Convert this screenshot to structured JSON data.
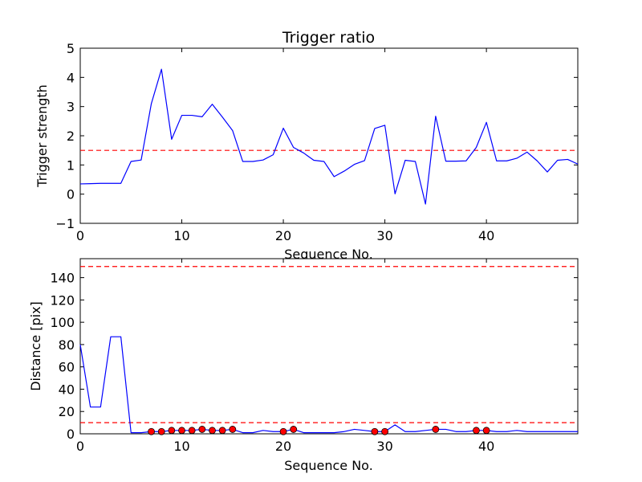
{
  "chart_data": [
    {
      "type": "line",
      "title": "Trigger ratio",
      "xlabel": "Sequence No.",
      "ylabel": "Trigger strength",
      "xlim": [
        0,
        49
      ],
      "ylim": [
        -1,
        5
      ],
      "xticks": [
        "0",
        "10",
        "20",
        "30",
        "40"
      ],
      "yticks": [
        "−1",
        "0",
        "1",
        "2",
        "3",
        "4",
        "5"
      ],
      "grid": false,
      "threshold": 1.5,
      "line_color": "#0000ff",
      "threshold_color": "#ff0000",
      "series": [
        {
          "x": [
            0,
            1,
            2,
            3,
            4,
            5,
            6,
            7,
            8,
            9,
            10,
            11,
            12,
            13,
            14,
            15,
            16,
            17,
            18,
            19,
            20,
            21,
            22,
            23,
            24,
            25,
            26,
            27,
            28,
            29,
            30,
            31,
            32,
            33,
            34,
            35,
            36,
            37,
            38,
            39,
            40,
            41,
            42,
            43,
            44,
            45,
            46,
            47,
            48,
            49
          ],
          "values": [
            0.35,
            0.36,
            0.37,
            0.37,
            0.37,
            1.12,
            1.17,
            3.1,
            4.28,
            1.88,
            2.7,
            2.7,
            2.65,
            3.08,
            2.64,
            2.18,
            1.12,
            1.12,
            1.17,
            1.35,
            2.26,
            1.6,
            1.41,
            1.16,
            1.12,
            0.6,
            0.79,
            1.02,
            1.15,
            2.25,
            2.36,
            0.01,
            1.16,
            1.12,
            -0.34,
            2.67,
            1.13,
            1.13,
            1.14,
            1.6,
            2.46,
            1.14,
            1.14,
            1.23,
            1.44,
            1.14,
            0.76,
            1.16,
            1.19,
            1.03
          ]
        }
      ]
    },
    {
      "type": "line",
      "title": "",
      "xlabel": "Sequence No.",
      "ylabel": "Distance [pix]",
      "xlim": [
        0,
        49
      ],
      "ylim": [
        0,
        157
      ],
      "xticks": [
        "0",
        "10",
        "20",
        "30",
        "40"
      ],
      "yticks": [
        "0",
        "20",
        "40",
        "60",
        "80",
        "100",
        "120",
        "140"
      ],
      "grid": false,
      "thresholds": [
        10,
        150
      ],
      "line_color": "#0000ff",
      "threshold_color": "#ff0000",
      "marker_color": "#ff0000",
      "series": [
        {
          "x": [
            0,
            1,
            2,
            3,
            4,
            5,
            6,
            7,
            8,
            9,
            10,
            11,
            12,
            13,
            14,
            15,
            16,
            17,
            18,
            19,
            20,
            21,
            22,
            23,
            24,
            25,
            26,
            27,
            28,
            29,
            30,
            31,
            32,
            33,
            34,
            35,
            36,
            37,
            38,
            39,
            40,
            41,
            42,
            43,
            44,
            45,
            46,
            47,
            48,
            49
          ],
          "values": [
            80,
            24,
            24,
            87,
            87,
            1,
            1,
            2,
            2,
            3,
            3,
            3,
            4,
            3,
            3,
            4,
            1,
            1,
            3,
            2,
            2,
            4,
            1,
            1,
            1,
            1,
            2,
            4,
            3,
            2,
            2,
            8,
            2,
            2,
            3,
            4,
            4,
            2,
            2,
            3,
            3,
            2,
            2,
            3,
            2,
            2,
            2,
            2,
            2,
            2
          ]
        }
      ],
      "highlighted_points": {
        "x": [
          7,
          8,
          9,
          10,
          11,
          12,
          13,
          14,
          15,
          20,
          21,
          29,
          30,
          35,
          39,
          40
        ],
        "values": [
          2,
          2,
          3,
          3,
          3,
          4,
          3,
          3,
          4,
          2,
          4,
          2,
          2,
          4,
          3,
          3
        ]
      }
    }
  ]
}
